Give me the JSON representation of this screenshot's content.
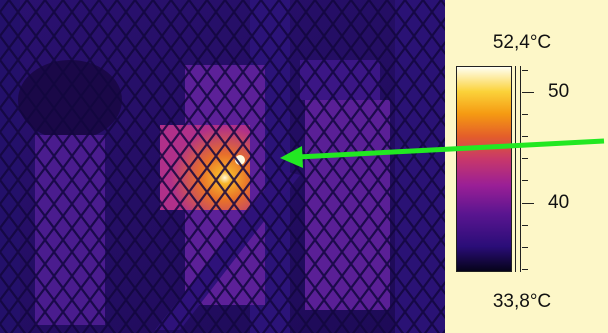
{
  "thermal_image": {
    "description_icon": "thermal-scene-icon"
  },
  "temperature_scale": {
    "max_label": "52,4°C",
    "min_label": "33,8°C",
    "max_value": 52.4,
    "min_value": 33.8,
    "tick_labels": [
      "50",
      "40"
    ],
    "tick_values": [
      50,
      40
    ]
  },
  "colors": {
    "arrow": "#22e822",
    "panel_background": "#fdf7c8",
    "hot_spot": "#fffbe0",
    "warm_region": "#e8702a",
    "background_cool": "#1e0b5e"
  }
}
